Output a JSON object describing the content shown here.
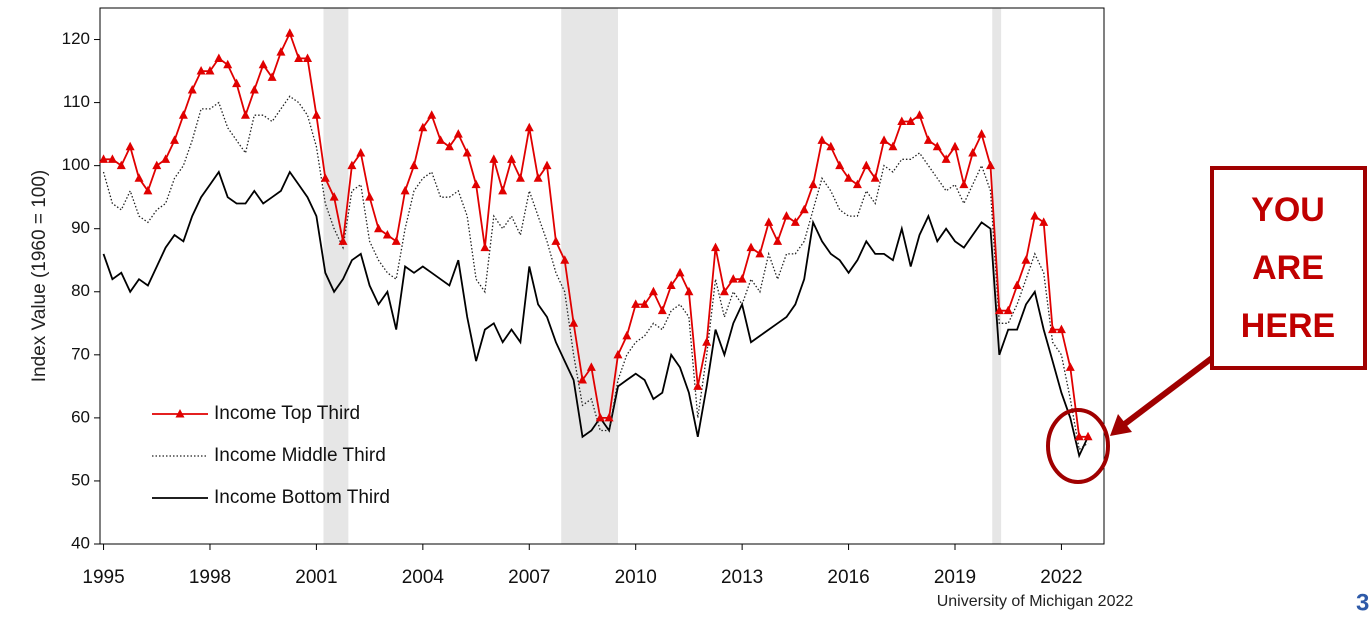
{
  "chart_data": {
    "type": "line",
    "ylabel": "Index Value (1960 = 100)",
    "source": "University of Michigan 2022",
    "page_number": "3",
    "annotation": [
      "YOU",
      "ARE",
      "HERE"
    ],
    "xlim": [
      1994.9,
      2023.2
    ],
    "ylim": [
      40,
      125
    ],
    "xticks": [
      1995,
      1998,
      2001,
      2004,
      2007,
      2010,
      2013,
      2016,
      2019,
      2022
    ],
    "yticks": [
      40,
      50,
      60,
      70,
      80,
      90,
      100,
      110,
      120
    ],
    "shaded_ranges": [
      [
        2001.2,
        2001.9
      ],
      [
        2007.9,
        2009.5
      ],
      [
        2020.05,
        2020.3
      ]
    ],
    "shade_color": "#e6e6e6",
    "legend": "lower left",
    "x": [
      1995,
      1995.25,
      1995.5,
      1995.75,
      1996,
      1996.25,
      1996.5,
      1996.75,
      1997,
      1997.25,
      1997.5,
      1997.75,
      1998,
      1998.25,
      1998.5,
      1998.75,
      1999,
      1999.25,
      1999.5,
      1999.75,
      2000,
      2000.25,
      2000.5,
      2000.75,
      2001,
      2001.25,
      2001.5,
      2001.75,
      2002,
      2002.25,
      2002.5,
      2002.75,
      2003,
      2003.25,
      2003.5,
      2003.75,
      2004,
      2004.25,
      2004.5,
      2004.75,
      2005,
      2005.25,
      2005.5,
      2005.75,
      2006,
      2006.25,
      2006.5,
      2006.75,
      2007,
      2007.25,
      2007.5,
      2007.75,
      2008,
      2008.25,
      2008.5,
      2008.75,
      2009,
      2009.25,
      2009.5,
      2009.75,
      2010,
      2010.25,
      2010.5,
      2010.75,
      2011,
      2011.25,
      2011.5,
      2011.75,
      2012,
      2012.25,
      2012.5,
      2012.75,
      2013,
      2013.25,
      2013.5,
      2013.75,
      2014,
      2014.25,
      2014.5,
      2014.75,
      2015,
      2015.25,
      2015.5,
      2015.75,
      2016,
      2016.25,
      2016.5,
      2016.75,
      2017,
      2017.25,
      2017.5,
      2017.75,
      2018,
      2018.25,
      2018.5,
      2018.75,
      2019,
      2019.25,
      2019.5,
      2019.75,
      2020,
      2020.25,
      2020.5,
      2020.75,
      2021,
      2021.25,
      2021.5,
      2021.75,
      2022,
      2022.25,
      2022.5,
      2022.75
    ],
    "series": [
      {
        "name": "Income Top Third",
        "color": "#e00000",
        "style": "triangles",
        "values": [
          101,
          101,
          100,
          103,
          98,
          96,
          100,
          101,
          104,
          108,
          112,
          115,
          115,
          117,
          116,
          113,
          108,
          112,
          116,
          114,
          118,
          121,
          117,
          117,
          108,
          98,
          95,
          88,
          100,
          102,
          95,
          90,
          89,
          88,
          96,
          100,
          106,
          108,
          104,
          103,
          105,
          102,
          97,
          87,
          101,
          96,
          101,
          98,
          106,
          98,
          100,
          88,
          85,
          75,
          66,
          68,
          60,
          60,
          70,
          73,
          78,
          78,
          80,
          77,
          81,
          83,
          80,
          65,
          72,
          87,
          80,
          82,
          82,
          87,
          86,
          91,
          88,
          92,
          91,
          93,
          97,
          104,
          103,
          100,
          98,
          97,
          100,
          98,
          104,
          103,
          107,
          107,
          108,
          104,
          103,
          101,
          103,
          97,
          102,
          105,
          100,
          77,
          77,
          81,
          85,
          92,
          91,
          74,
          74,
          68,
          57,
          57
        ]
      },
      {
        "name": "Income Middle Third",
        "color": "#222222",
        "style": "dotted",
        "values": [
          99,
          94,
          93,
          96,
          92,
          91,
          93,
          94,
          98,
          100,
          104,
          109,
          109,
          110,
          106,
          104,
          102,
          108,
          108,
          107,
          109,
          111,
          110,
          108,
          103,
          94,
          90,
          87,
          96,
          97,
          88,
          85,
          83,
          82,
          90,
          96,
          98,
          99,
          95,
          95,
          96,
          92,
          82,
          80,
          92,
          90,
          92,
          89,
          96,
          92,
          88,
          83,
          80,
          70,
          62,
          63,
          58,
          58,
          66,
          70,
          72,
          73,
          75,
          74,
          77,
          78,
          76,
          60,
          70,
          82,
          76,
          80,
          78,
          82,
          80,
          86,
          82,
          86,
          86,
          88,
          93,
          98,
          96,
          93,
          92,
          92,
          96,
          94,
          100,
          99,
          101,
          101,
          102,
          100,
          98,
          96,
          97,
          94,
          97,
          100,
          96,
          75,
          75,
          78,
          82,
          86,
          83,
          72,
          70,
          63,
          55,
          56
        ]
      },
      {
        "name": "Income Bottom Third",
        "color": "#000000",
        "style": "solid",
        "values": [
          86,
          82,
          83,
          80,
          82,
          81,
          84,
          87,
          89,
          88,
          92,
          95,
          97,
          99,
          95,
          94,
          94,
          96,
          94,
          95,
          96,
          99,
          97,
          95,
          92,
          83,
          80,
          82,
          85,
          86,
          81,
          78,
          80,
          74,
          84,
          83,
          84,
          83,
          82,
          81,
          85,
          76,
          69,
          74,
          75,
          72,
          74,
          72,
          84,
          78,
          76,
          72,
          69,
          66,
          57,
          58,
          60,
          58,
          65,
          66,
          67,
          66,
          63,
          64,
          70,
          68,
          64,
          57,
          65,
          74,
          70,
          75,
          78,
          72,
          73,
          74,
          75,
          76,
          78,
          82,
          91,
          88,
          86,
          85,
          83,
          85,
          88,
          86,
          86,
          85,
          90,
          84,
          89,
          92,
          88,
          90,
          88,
          87,
          89,
          91,
          90,
          70,
          74,
          74,
          78,
          80,
          74,
          69,
          64,
          60,
          54,
          57
        ]
      }
    ]
  }
}
